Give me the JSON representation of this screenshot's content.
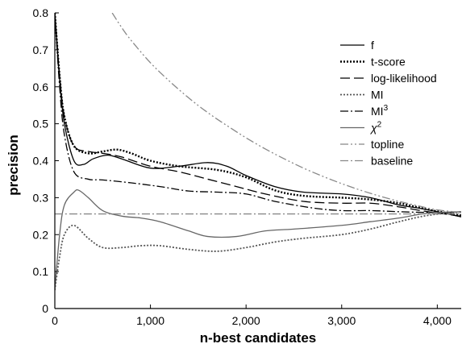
{
  "chart_data": {
    "type": "line",
    "title": "",
    "xlabel": "n-best candidates",
    "ylabel": "precision",
    "xlim": [
      0,
      4250
    ],
    "ylim": [
      0,
      0.8
    ],
    "x_ticks": [
      0,
      1000,
      2000,
      3000,
      4000
    ],
    "x_tick_labels": [
      "0",
      "1,000",
      "2,000",
      "3,000",
      "4,000"
    ],
    "y_ticks": [
      0,
      0.1,
      0.2,
      0.3,
      0.4,
      0.5,
      0.6,
      0.7,
      0.8
    ],
    "y_tick_labels": [
      "0",
      "0.1",
      "0.2",
      "0.3",
      "0.4",
      "0.5",
      "0.6",
      "0.7",
      "0.8"
    ],
    "grid": false,
    "legend_position": "top-right",
    "series": [
      {
        "name": "f",
        "legend_label": "f",
        "color": "#000000",
        "dash": "solid",
        "points": [
          [
            0,
            0.8
          ],
          [
            50,
            0.62
          ],
          [
            100,
            0.5
          ],
          [
            200,
            0.4
          ],
          [
            300,
            0.39
          ],
          [
            400,
            0.405
          ],
          [
            550,
            0.415
          ],
          [
            700,
            0.405
          ],
          [
            1000,
            0.38
          ],
          [
            1300,
            0.385
          ],
          [
            1600,
            0.395
          ],
          [
            1800,
            0.385
          ],
          [
            2000,
            0.36
          ],
          [
            2300,
            0.33
          ],
          [
            2600,
            0.315
          ],
          [
            3000,
            0.31
          ],
          [
            3300,
            0.3
          ],
          [
            3600,
            0.28
          ],
          [
            3800,
            0.272
          ],
          [
            4000,
            0.262
          ],
          [
            4250,
            0.248
          ]
        ]
      },
      {
        "name": "t-score",
        "legend_label": "t-score",
        "color": "#000000",
        "dash": "dotted",
        "points": [
          [
            0,
            0.8
          ],
          [
            50,
            0.63
          ],
          [
            100,
            0.52
          ],
          [
            200,
            0.44
          ],
          [
            350,
            0.42
          ],
          [
            500,
            0.425
          ],
          [
            650,
            0.43
          ],
          [
            800,
            0.42
          ],
          [
            1000,
            0.4
          ],
          [
            1300,
            0.385
          ],
          [
            1700,
            0.375
          ],
          [
            2000,
            0.355
          ],
          [
            2300,
            0.32
          ],
          [
            2600,
            0.305
          ],
          [
            3000,
            0.3
          ],
          [
            3300,
            0.295
          ],
          [
            3600,
            0.285
          ],
          [
            3900,
            0.268
          ],
          [
            4250,
            0.252
          ]
        ]
      },
      {
        "name": "log-likelihood",
        "legend_label": "log-likelihood",
        "color": "#000000",
        "dash": "longdash",
        "points": [
          [
            0,
            0.8
          ],
          [
            50,
            0.63
          ],
          [
            100,
            0.52
          ],
          [
            200,
            0.44
          ],
          [
            350,
            0.425
          ],
          [
            500,
            0.42
          ],
          [
            700,
            0.41
          ],
          [
            1000,
            0.385
          ],
          [
            1300,
            0.37
          ],
          [
            1600,
            0.35
          ],
          [
            1900,
            0.33
          ],
          [
            2200,
            0.31
          ],
          [
            2600,
            0.29
          ],
          [
            3000,
            0.285
          ],
          [
            3300,
            0.285
          ],
          [
            3600,
            0.275
          ],
          [
            3900,
            0.262
          ],
          [
            4250,
            0.25
          ]
        ]
      },
      {
        "name": "MI",
        "legend_label": "MI",
        "color": "#555555",
        "dash": "densedot",
        "points": [
          [
            0,
            0.05
          ],
          [
            50,
            0.14
          ],
          [
            100,
            0.2
          ],
          [
            200,
            0.225
          ],
          [
            350,
            0.19
          ],
          [
            500,
            0.165
          ],
          [
            700,
            0.165
          ],
          [
            900,
            0.17
          ],
          [
            1100,
            0.17
          ],
          [
            1400,
            0.16
          ],
          [
            1700,
            0.155
          ],
          [
            2000,
            0.165
          ],
          [
            2300,
            0.18
          ],
          [
            2600,
            0.19
          ],
          [
            3000,
            0.2
          ],
          [
            3300,
            0.215
          ],
          [
            3600,
            0.235
          ],
          [
            3900,
            0.252
          ],
          [
            4250,
            0.262
          ]
        ]
      },
      {
        "name": "MI^3",
        "legend_label": "MI",
        "legend_sup": "3",
        "color": "#000000",
        "dash": "dashdot",
        "points": [
          [
            0,
            0.8
          ],
          [
            50,
            0.6
          ],
          [
            100,
            0.47
          ],
          [
            200,
            0.37
          ],
          [
            350,
            0.35
          ],
          [
            500,
            0.348
          ],
          [
            800,
            0.34
          ],
          [
            1100,
            0.33
          ],
          [
            1400,
            0.318
          ],
          [
            1700,
            0.315
          ],
          [
            2000,
            0.31
          ],
          [
            2300,
            0.29
          ],
          [
            2700,
            0.272
          ],
          [
            3000,
            0.265
          ],
          [
            3300,
            0.265
          ],
          [
            3600,
            0.262
          ],
          [
            3900,
            0.26
          ],
          [
            4250,
            0.26
          ]
        ]
      },
      {
        "name": "chi2",
        "legend_label": "χ",
        "legend_sup": "2",
        "color": "#666666",
        "dash": "solid",
        "points": [
          [
            0,
            0.05
          ],
          [
            50,
            0.2
          ],
          [
            100,
            0.28
          ],
          [
            200,
            0.315
          ],
          [
            250,
            0.32
          ],
          [
            350,
            0.3
          ],
          [
            500,
            0.265
          ],
          [
            700,
            0.25
          ],
          [
            900,
            0.245
          ],
          [
            1100,
            0.235
          ],
          [
            1400,
            0.21
          ],
          [
            1600,
            0.195
          ],
          [
            1900,
            0.195
          ],
          [
            2200,
            0.21
          ],
          [
            2500,
            0.215
          ],
          [
            3000,
            0.225
          ],
          [
            3300,
            0.235
          ],
          [
            3600,
            0.245
          ],
          [
            3900,
            0.258
          ],
          [
            4250,
            0.262
          ]
        ]
      },
      {
        "name": "topline",
        "legend_label": "topline",
        "color": "#888888",
        "dash": "dashdotdot",
        "points": [
          [
            600,
            0.8
          ],
          [
            700,
            0.76
          ],
          [
            800,
            0.725
          ],
          [
            1000,
            0.665
          ],
          [
            1200,
            0.615
          ],
          [
            1400,
            0.57
          ],
          [
            1600,
            0.53
          ],
          [
            1800,
            0.495
          ],
          [
            2000,
            0.462
          ],
          [
            2200,
            0.432
          ],
          [
            2400,
            0.405
          ],
          [
            2600,
            0.38
          ],
          [
            2800,
            0.358
          ],
          [
            3000,
            0.338
          ],
          [
            3200,
            0.32
          ],
          [
            3400,
            0.304
          ],
          [
            3600,
            0.29
          ],
          [
            3800,
            0.278
          ],
          [
            4000,
            0.267
          ],
          [
            4250,
            0.26
          ]
        ]
      },
      {
        "name": "baseline",
        "legend_label": "baseline",
        "color": "#888888",
        "dash": "dashdot",
        "points": [
          [
            0,
            0.256
          ],
          [
            4250,
            0.256
          ]
        ]
      }
    ]
  }
}
